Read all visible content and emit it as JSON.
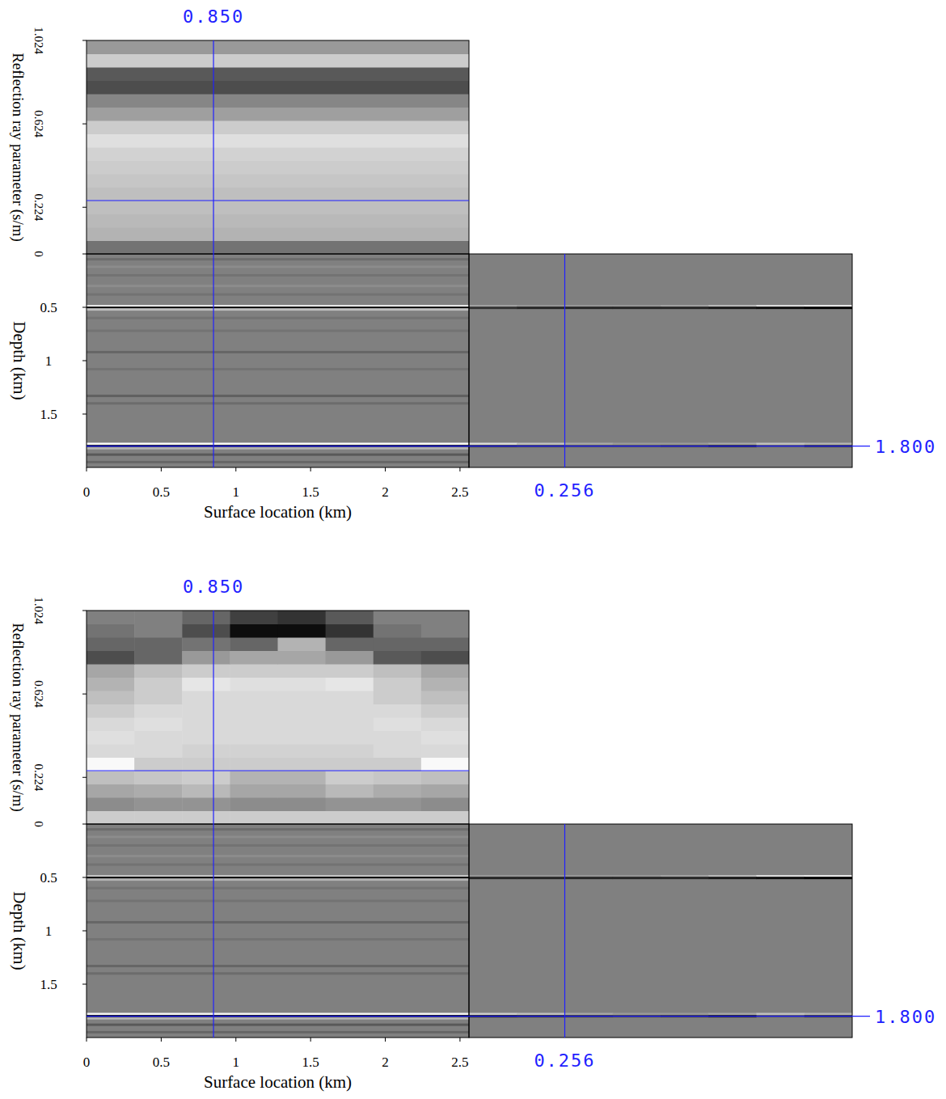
{
  "chart_data": [
    {
      "type": "heatmap",
      "xlabel": "Surface location (km)",
      "xlim": [
        0,
        2.56
      ],
      "xticks": [
        0,
        0.5,
        1,
        1.5,
        2,
        2.5
      ],
      "ylabel": "Depth (km)",
      "ylim": [
        0,
        2
      ],
      "yticks": [
        0.5,
        1,
        1.5
      ],
      "ray_parameter_label": "Reflection ray parameter (s/m)",
      "ray_parameter_lim": [
        0,
        1.024
      ],
      "ray_parameter_ticks": [
        0,
        0.224,
        0.624,
        1.024
      ],
      "cell_range": [
        -1,
        1
      ],
      "top_x_edges": [
        0,
        2.56
      ],
      "top_p_edges": [
        0,
        0.064,
        0.128,
        0.192,
        0.256,
        0.32,
        0.384,
        0.448,
        0.512,
        0.576,
        0.64,
        0.704,
        0.768,
        0.832,
        0.896,
        0.96,
        1.024
      ],
      "top_cells": [
        [
          -0.1
        ],
        [
          0.4
        ],
        [
          0.45
        ],
        [
          0.5
        ],
        [
          0.5
        ],
        [
          0.55
        ],
        [
          0.6
        ],
        [
          0.65
        ],
        [
          0.75
        ],
        [
          0.6
        ],
        [
          0.25
        ],
        [
          0.05
        ],
        [
          -0.4
        ],
        [
          -0.3
        ],
        [
          0.6
        ],
        [
          0.2
        ]
      ],
      "reflector_depths": [
        0.05,
        0.12,
        0.2,
        0.3,
        0.38,
        0.49,
        0.505,
        0.52,
        0.6,
        0.72,
        0.92,
        1.08,
        1.33,
        1.4,
        1.78,
        1.8,
        1.82,
        1.88,
        1.95
      ],
      "reflector_amplitudes": [
        -0.15,
        0.1,
        -0.1,
        0.1,
        -0.1,
        0.9,
        -1,
        0.5,
        -0.1,
        -0.1,
        -0.2,
        -0.1,
        -0.25,
        -0.15,
        0.95,
        -0.9,
        0.4,
        -0.3,
        -0.2
      ],
      "gather_p_edges": [
        0,
        0.128,
        0.256,
        0.384,
        0.512,
        0.64,
        0.768,
        0.896,
        1.024
      ],
      "gather_events": [
        {
          "depth": 0.49,
          "amplitudes": [
            0.3,
            0.2,
            0.2,
            0.2,
            0.3,
            0.5,
            0.8,
            0.9
          ]
        },
        {
          "depth": 0.505,
          "amplitudes": [
            -0.6,
            -0.7,
            -0.7,
            -0.7,
            -0.7,
            -0.8,
            -0.9,
            -1
          ]
        },
        {
          "depth": 1.78,
          "amplitudes": [
            0.7,
            0.5,
            0.3,
            0.2,
            0.2,
            0.3,
            0.5,
            0.4
          ]
        },
        {
          "depth": 1.8,
          "amplitudes": [
            -0.6,
            -0.5,
            -0.4,
            -0.4,
            -0.5,
            -0.7,
            -0.3,
            -0.6
          ]
        }
      ],
      "crosshair": {
        "x": {
          "value": 0.85,
          "label": "0.850"
        },
        "depth": {
          "value": 1.8,
          "label": "1.800"
        },
        "ray_parameter": 0.256
      }
    },
    {
      "type": "heatmap",
      "xlabel": "Surface location (km)",
      "xlim": [
        0,
        2.56
      ],
      "xticks": [
        0,
        0.5,
        1,
        1.5,
        2,
        2.5
      ],
      "ylabel": "Depth (km)",
      "ylim": [
        0,
        2
      ],
      "yticks": [
        0.5,
        1,
        1.5
      ],
      "ray_parameter_label": "Reflection ray parameter (s/m)",
      "ray_parameter_lim": [
        0,
        1.024
      ],
      "ray_parameter_ticks": [
        0,
        0.224,
        0.624,
        1.024
      ],
      "cell_range": [
        -1,
        1
      ],
      "top_x_edges": [
        0,
        0.32,
        0.64,
        0.96,
        1.28,
        1.6,
        1.92,
        2.24,
        2.56
      ],
      "top_p_edges": [
        0,
        0.064,
        0.128,
        0.192,
        0.256,
        0.32,
        0.384,
        0.448,
        0.512,
        0.576,
        0.64,
        0.704,
        0.768,
        0.832,
        0.896,
        0.96,
        1.024
      ],
      "top_cells": [
        [
          0.6,
          0.6,
          0.6,
          0.6,
          0.6,
          0.6,
          0.6,
          0.6
        ],
        [
          0.1,
          0.15,
          0.15,
          0.1,
          0.1,
          0.15,
          0.15,
          0.1
        ],
        [
          0.3,
          0.35,
          0.45,
          0.3,
          0.3,
          0.45,
          0.35,
          0.3
        ],
        [
          0.5,
          0.55,
          0.6,
          0.4,
          0.4,
          0.6,
          0.55,
          0.5
        ],
        [
          0.95,
          0.6,
          0.6,
          0.6,
          0.6,
          0.6,
          0.6,
          0.95
        ],
        [
          0.7,
          0.7,
          0.65,
          0.65,
          0.65,
          0.65,
          0.7,
          0.7
        ],
        [
          0.75,
          0.7,
          0.7,
          0.7,
          0.7,
          0.7,
          0.7,
          0.75
        ],
        [
          0.7,
          0.75,
          0.7,
          0.7,
          0.7,
          0.7,
          0.75,
          0.7
        ],
        [
          0.6,
          0.7,
          0.7,
          0.7,
          0.7,
          0.7,
          0.7,
          0.6
        ],
        [
          0.5,
          0.6,
          0.7,
          0.7,
          0.7,
          0.7,
          0.6,
          0.5
        ],
        [
          0.4,
          0.6,
          0.8,
          0.75,
          0.75,
          0.8,
          0.6,
          0.4
        ],
        [
          0.3,
          0.5,
          0.6,
          0.6,
          0.6,
          0.6,
          0.5,
          0.3
        ],
        [
          -0.4,
          -0.2,
          0.2,
          0.3,
          0.3,
          0.2,
          -0.3,
          -0.4
        ],
        [
          -0.2,
          -0.2,
          -0.1,
          -0.2,
          0.4,
          -0.2,
          -0.2,
          -0.2
        ],
        [
          -0.1,
          0,
          -0.4,
          -0.9,
          -0.9,
          -0.6,
          -0.1,
          0
        ],
        [
          0,
          0,
          -0.2,
          -0.5,
          -0.6,
          -0.3,
          0,
          0
        ]
      ],
      "reflector_depths": [
        0.05,
        0.12,
        0.2,
        0.3,
        0.38,
        0.49,
        0.505,
        0.52,
        0.6,
        0.72,
        0.92,
        1.08,
        1.33,
        1.4,
        1.78,
        1.8,
        1.82,
        1.88,
        1.95
      ],
      "reflector_amplitudes": [
        -0.15,
        0.1,
        -0.1,
        0.1,
        -0.1,
        0.6,
        -1,
        0.4,
        -0.1,
        -0.1,
        -0.2,
        -0.1,
        -0.2,
        -0.15,
        0.9,
        -1,
        0.4,
        -0.3,
        -0.2
      ],
      "gather_p_edges": [
        0,
        0.128,
        0.256,
        0.384,
        0.512,
        0.64,
        0.768,
        0.896,
        1.024
      ],
      "gather_events": [
        {
          "depth": 0.49,
          "amplitudes": [
            0.2,
            0.2,
            0.2,
            0.2,
            0.3,
            0.5,
            0.8,
            0.9
          ]
        },
        {
          "depth": 0.505,
          "amplitudes": [
            -0.7,
            -0.7,
            -0.7,
            -0.7,
            -0.7,
            -0.8,
            -0.9,
            -1
          ]
        },
        {
          "depth": 1.78,
          "amplitudes": [
            0.6,
            0.5,
            0.3,
            0.2,
            0.2,
            0.3,
            0.5,
            0.4
          ]
        },
        {
          "depth": 1.8,
          "amplitudes": [
            -0.8,
            -0.7,
            -0.6,
            -0.5,
            -0.6,
            -0.8,
            -0.3,
            -0.6
          ]
        }
      ],
      "crosshair": {
        "x": {
          "value": 0.85,
          "label": "0.850"
        },
        "depth": {
          "value": 1.8,
          "label": "1.800"
        },
        "ray_parameter": 0.256
      }
    }
  ]
}
